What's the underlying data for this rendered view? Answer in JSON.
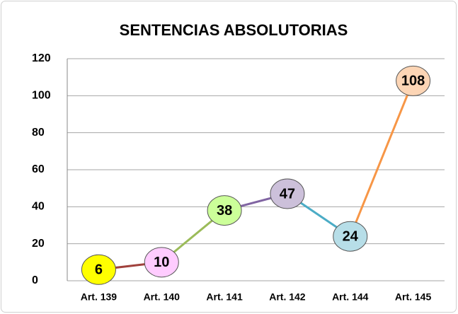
{
  "chart_data": {
    "type": "line",
    "title": "SENTENCIAS ABSOLUTORIAS",
    "categories": [
      "Art. 139",
      "Art. 140",
      "Art. 141",
      "Art. 142",
      "Art. 144",
      "Art. 145"
    ],
    "values": [
      6,
      10,
      38,
      47,
      24,
      108
    ],
    "segment_colors": [
      "#a0413c",
      "#9bbb59",
      "#8064a2",
      "#4bacc6",
      "#f79646"
    ],
    "marker_colors": [
      "#ffff00",
      "#ffccff",
      "#ccff99",
      "#ccc0da",
      "#b7dee8",
      "#fcd5b5"
    ],
    "ylim": [
      0,
      120
    ],
    "yticks": [
      0,
      20,
      40,
      60,
      80,
      100,
      120
    ],
    "grid": true
  }
}
